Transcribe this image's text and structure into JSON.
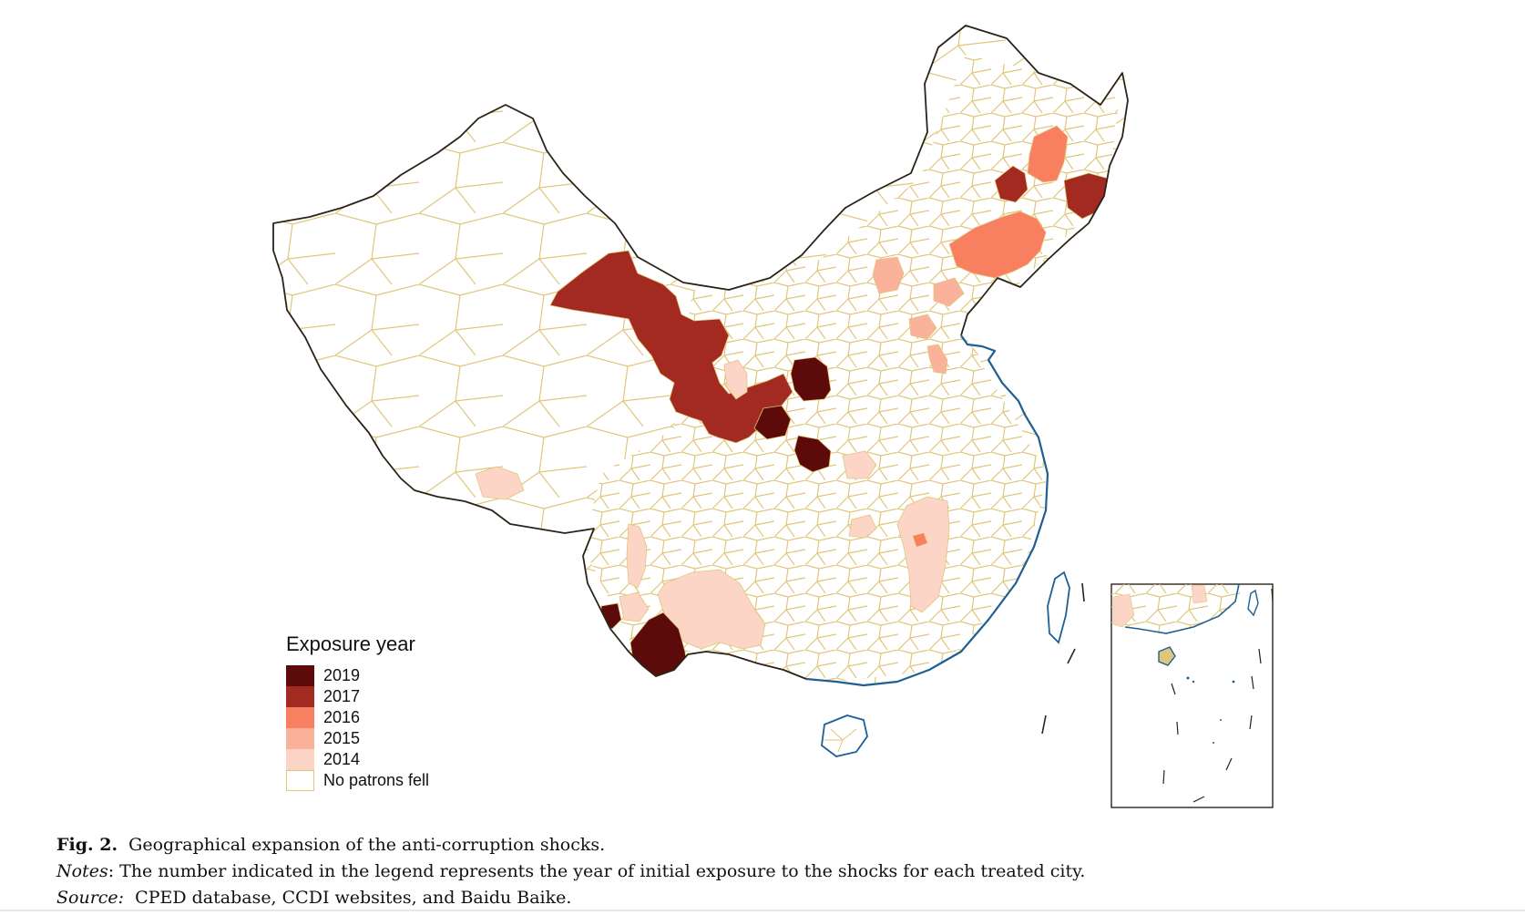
{
  "legend": {
    "title": "Exposure year",
    "items": [
      {
        "label": "2019",
        "color": "#5c0a0a"
      },
      {
        "label": "2017",
        "color": "#a32a20"
      },
      {
        "label": "2016",
        "color": "#f97f61"
      },
      {
        "label": "2015",
        "color": "#fbb29b"
      },
      {
        "label": "2014",
        "color": "#fcd5c6"
      },
      {
        "label": "No patrons fell",
        "color": "#ffffff"
      }
    ]
  },
  "colors": {
    "national_border": "#2b2318",
    "city_border": "#e0c67b",
    "coastline": "#1f5f93"
  },
  "caption": {
    "fig_label": "Fig. 2.",
    "fig_title": "Geographical expansion of the anti-corruption shocks.",
    "notes_label": "Notes",
    "notes_text": ": The number indicated in the legend represents the year of initial exposure to the shocks for each treated city.",
    "source_label": "Source:",
    "source_text": "CPED database, CCDI websites, and Baidu Baike."
  }
}
